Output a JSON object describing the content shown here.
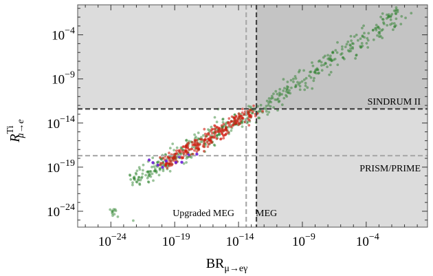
{
  "chart_data": {
    "type": "scatter",
    "x_scale": "log",
    "y_scale": "log",
    "xlim_log10": [
      -26.6,
      0.8
    ],
    "ylim_log10": [
      -25.8,
      -0.6
    ],
    "x_ticks": [
      {
        "exp": -24,
        "label_base": "10",
        "label_exp": "−24"
      },
      {
        "exp": -19,
        "label_base": "10",
        "label_exp": "−19"
      },
      {
        "exp": -14,
        "label_base": "10",
        "label_exp": "−14"
      },
      {
        "exp": -9,
        "label_base": "10",
        "label_exp": "−9"
      },
      {
        "exp": -4,
        "label_base": "10",
        "label_exp": "−4"
      }
    ],
    "y_ticks": [
      {
        "exp": -24,
        "label_base": "10",
        "label_exp": "−24"
      },
      {
        "exp": -19,
        "label_base": "10",
        "label_exp": "−19"
      },
      {
        "exp": -14,
        "label_base": "10",
        "label_exp": "−14"
      },
      {
        "exp": -9,
        "label_base": "10",
        "label_exp": "−9"
      },
      {
        "exp": -4,
        "label_base": "10",
        "label_exp": "−4"
      }
    ],
    "xlabel": {
      "main": "BR",
      "sub": "μ→eγ"
    },
    "ylabel": {
      "main": "R",
      "sup": "Ti",
      "sub": "μ→e"
    },
    "limits": {
      "vertical": [
        {
          "name": "MEG",
          "x_log10": -12.6,
          "style": "dark-dashed"
        },
        {
          "name": "Upgraded MEG",
          "x_log10": -13.4,
          "style": "light-dashed"
        }
      ],
      "horizontal": [
        {
          "name": "SINDRUM II",
          "y_log10": -12.4,
          "style": "dark-dashed"
        },
        {
          "name": "PRISM/PRIME",
          "y_log10": -17.7,
          "style": "light-dashed"
        }
      ]
    },
    "series": [
      {
        "color": "#1f7a1f",
        "points": [
          [
            -23.6,
            -24.0
          ],
          [
            -22.2,
            -20.6
          ],
          [
            -21.8,
            -20.2
          ],
          [
            -21.4,
            -19.8
          ],
          [
            -21.0,
            -19.6
          ],
          [
            -20.6,
            -19.0
          ],
          [
            -20.2,
            -18.8
          ],
          [
            -19.8,
            -18.4
          ],
          [
            -19.4,
            -18.2
          ],
          [
            -19.0,
            -17.8
          ],
          [
            -18.6,
            -17.4
          ],
          [
            -18.2,
            -17.2
          ],
          [
            -17.8,
            -16.8
          ],
          [
            -17.4,
            -16.4
          ],
          [
            -17.0,
            -16.2
          ],
          [
            -16.6,
            -15.8
          ],
          [
            -16.2,
            -15.6
          ],
          [
            -15.8,
            -15.0
          ],
          [
            -15.4,
            -14.8
          ],
          [
            -15.0,
            -14.4
          ],
          [
            -14.6,
            -14.2
          ],
          [
            -14.2,
            -13.8
          ],
          [
            -13.8,
            -13.6
          ],
          [
            -13.4,
            -13.2
          ],
          [
            -13.0,
            -12.8
          ],
          [
            -12.6,
            -12.6
          ],
          [
            -12.0,
            -12.2
          ],
          [
            -11.4,
            -11.6
          ],
          [
            -10.8,
            -11.0
          ],
          [
            -10.2,
            -10.4
          ],
          [
            -9.6,
            -9.8
          ],
          [
            -9.0,
            -9.2
          ],
          [
            -8.4,
            -8.6
          ],
          [
            -7.8,
            -8.0
          ],
          [
            -7.2,
            -7.4
          ],
          [
            -6.6,
            -6.8
          ],
          [
            -6.0,
            -6.2
          ],
          [
            -5.4,
            -5.6
          ],
          [
            -4.8,
            -5.0
          ],
          [
            -4.2,
            -4.4
          ],
          [
            -3.6,
            -3.8
          ],
          [
            -3.0,
            -3.2
          ],
          [
            -2.4,
            -2.6
          ],
          [
            -1.8,
            -2.0
          ],
          [
            -1.4,
            -1.6
          ]
        ],
        "spread_log10": 1.0,
        "density": 12
      },
      {
        "color": "#d11a0f",
        "points": [
          [
            -19.8,
            -18.6
          ],
          [
            -19.4,
            -18.2
          ],
          [
            -19.0,
            -18.0
          ],
          [
            -18.6,
            -17.6
          ],
          [
            -18.2,
            -17.2
          ],
          [
            -17.8,
            -16.8
          ],
          [
            -17.4,
            -16.6
          ],
          [
            -17.0,
            -16.2
          ],
          [
            -16.6,
            -15.8
          ],
          [
            -16.2,
            -15.6
          ],
          [
            -15.8,
            -15.2
          ],
          [
            -15.4,
            -14.8
          ],
          [
            -15.0,
            -14.6
          ],
          [
            -14.6,
            -14.2
          ],
          [
            -14.2,
            -13.8
          ],
          [
            -13.8,
            -13.4
          ],
          [
            -13.4,
            -13.2
          ],
          [
            -13.0,
            -12.8
          ]
        ],
        "spread_log10": 0.7,
        "density": 14
      },
      {
        "color": "#6a1fd6",
        "points": [
          [
            -21.0,
            -18.2
          ],
          [
            -20.6,
            -18.4
          ],
          [
            -20.4,
            -19.0
          ],
          [
            -19.6,
            -18.2
          ],
          [
            -19.4,
            -18.4
          ],
          [
            -19.0,
            -18.6
          ],
          [
            -18.8,
            -18.0
          ],
          [
            -18.4,
            -18.4
          ],
          [
            -18.0,
            -17.8
          ],
          [
            -17.4,
            -17.6
          ]
        ],
        "spread_log10": 0.15,
        "density": 1
      }
    ]
  }
}
